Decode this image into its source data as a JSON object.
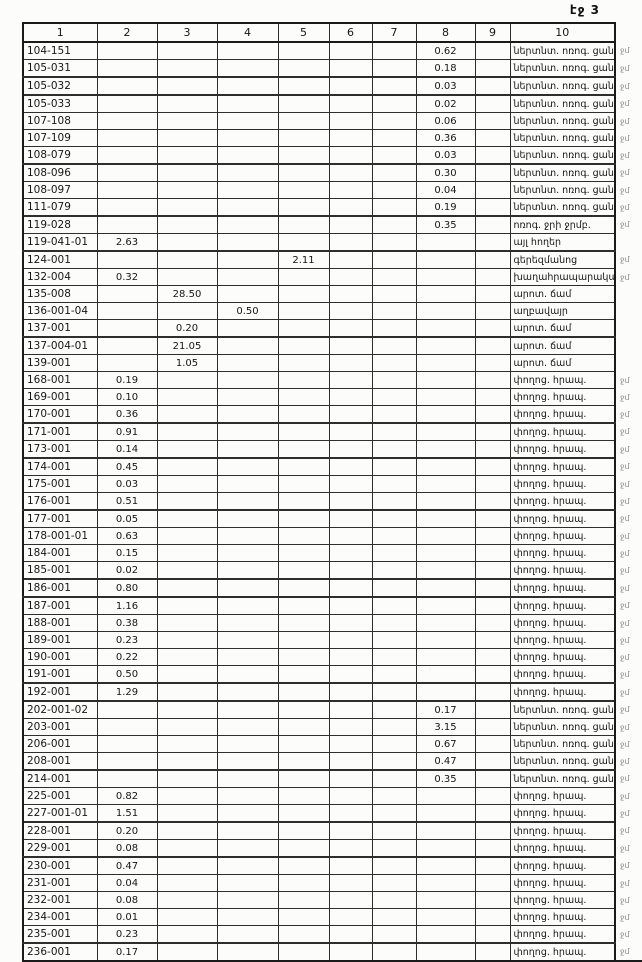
{
  "page": {
    "label": "էջ 3"
  },
  "table": {
    "headers": [
      "1",
      "2",
      "3",
      "4",
      "5",
      "6",
      "7",
      "8",
      "9",
      "10"
    ],
    "rows": [
      {
        "c1": "104-151",
        "c2": "",
        "c3": "",
        "c4": "",
        "c5": "",
        "c6": "",
        "c7": "",
        "c8": "0.62",
        "c9": "",
        "c10": "ներտնտ. ոռոգ. ցանց",
        "mark": "ջմ"
      },
      {
        "c1": "105-031",
        "c2": "",
        "c3": "",
        "c4": "",
        "c5": "",
        "c6": "",
        "c7": "",
        "c8": "0.18",
        "c9": "",
        "c10": "ներտնտ. ոռոգ. ցանց",
        "mark": "ջմ"
      },
      {
        "c1": "105-032",
        "c2": "",
        "c3": "",
        "c4": "",
        "c5": "",
        "c6": "",
        "c7": "",
        "c8": "0.03",
        "c9": "",
        "c10": "ներտնտ. ոռոգ. ցանց",
        "mark": "ջմ"
      },
      {
        "c1": "105-033",
        "c2": "",
        "c3": "",
        "c4": "",
        "c5": "",
        "c6": "",
        "c7": "",
        "c8": "0.02",
        "c9": "",
        "c10": "ներտնտ. ոռոգ. ցանց",
        "mark": "ջմ"
      },
      {
        "c1": "107-108",
        "c2": "",
        "c3": "",
        "c4": "",
        "c5": "",
        "c6": "",
        "c7": "",
        "c8": "0.06",
        "c9": "",
        "c10": "ներտնտ. ոռոգ. ցանց",
        "mark": "ջմ"
      },
      {
        "c1": "107-109",
        "c2": "",
        "c3": "",
        "c4": "",
        "c5": "",
        "c6": "",
        "c7": "",
        "c8": "0.36",
        "c9": "",
        "c10": "ներտնտ. ոռոգ. ցանց",
        "mark": "ջմ"
      },
      {
        "c1": "108-079",
        "c2": "",
        "c3": "",
        "c4": "",
        "c5": "",
        "c6": "",
        "c7": "",
        "c8": "0.03",
        "c9": "",
        "c10": "ներտնտ. ոռոգ. ցանց",
        "mark": "ջմ"
      },
      {
        "c1": "108-096",
        "c2": "",
        "c3": "",
        "c4": "",
        "c5": "",
        "c6": "",
        "c7": "",
        "c8": "0.30",
        "c9": "",
        "c10": "ներտնտ. ոռոգ. ցանց",
        "mark": "ջմ"
      },
      {
        "c1": "108-097",
        "c2": "",
        "c3": "",
        "c4": "",
        "c5": "",
        "c6": "",
        "c7": "",
        "c8": "0.04",
        "c9": "",
        "c10": "ներտնտ. ոռոգ. ցանց",
        "mark": "ջմ"
      },
      {
        "c1": "111-079",
        "c2": "",
        "c3": "",
        "c4": "",
        "c5": "",
        "c6": "",
        "c7": "",
        "c8": "0.19",
        "c9": "",
        "c10": "ներտնտ. ոռոգ. ցանց",
        "mark": "ջմ"
      },
      {
        "c1": "119-028",
        "c2": "",
        "c3": "",
        "c4": "",
        "c5": "",
        "c6": "",
        "c7": "",
        "c8": "0.35",
        "c9": "",
        "c10": "ոռոգ. ջրի ջրմբ.",
        "mark": "ջմ"
      },
      {
        "c1": "119-041-01",
        "c2": "2.63",
        "c3": "",
        "c4": "",
        "c5": "",
        "c6": "",
        "c7": "",
        "c8": "",
        "c9": "",
        "c10": "այլ հողեր",
        "mark": ""
      },
      {
        "c1": "124-001",
        "c2": "",
        "c3": "",
        "c4": "",
        "c5": "2.11",
        "c6": "",
        "c7": "",
        "c8": "",
        "c9": "",
        "c10": "գերեզմանոց",
        "mark": "ջմ"
      },
      {
        "c1": "132-004",
        "c2": "0.32",
        "c3": "",
        "c4": "",
        "c5": "",
        "c6": "",
        "c7": "",
        "c8": "",
        "c9": "",
        "c10": "խաղահրապարակատեղի",
        "mark": "ջմ"
      },
      {
        "c1": "135-008",
        "c2": "",
        "c3": "28.50",
        "c4": "",
        "c5": "",
        "c6": "",
        "c7": "",
        "c8": "",
        "c9": "",
        "c10": "արոտ. ճամ",
        "mark": ""
      },
      {
        "c1": "136-001-04",
        "c2": "",
        "c3": "",
        "c4": "0.50",
        "c5": "",
        "c6": "",
        "c7": "",
        "c8": "",
        "c9": "",
        "c10": "աղբավայր",
        "mark": ""
      },
      {
        "c1": "137-001",
        "c2": "",
        "c3": "0.20",
        "c4": "",
        "c5": "",
        "c6": "",
        "c7": "",
        "c8": "",
        "c9": "",
        "c10": "արոտ. ճամ",
        "mark": ""
      },
      {
        "c1": "137-004-01",
        "c2": "",
        "c3": "21.05",
        "c4": "",
        "c5": "",
        "c6": "",
        "c7": "",
        "c8": "",
        "c9": "",
        "c10": "արոտ. ճամ",
        "mark": ""
      },
      {
        "c1": "139-001",
        "c2": "",
        "c3": "1.05",
        "c4": "",
        "c5": "",
        "c6": "",
        "c7": "",
        "c8": "",
        "c9": "",
        "c10": "արոտ. ճամ",
        "mark": ""
      },
      {
        "c1": "168-001",
        "c2": "0.19",
        "c3": "",
        "c4": "",
        "c5": "",
        "c6": "",
        "c7": "",
        "c8": "",
        "c9": "",
        "c10": "փողոց. հրապ.",
        "mark": "ջմ"
      },
      {
        "c1": "169-001",
        "c2": "0.10",
        "c3": "",
        "c4": "",
        "c5": "",
        "c6": "",
        "c7": "",
        "c8": "",
        "c9": "",
        "c10": "փողոց. հրապ.",
        "mark": "ջմ"
      },
      {
        "c1": "170-001",
        "c2": "0.36",
        "c3": "",
        "c4": "",
        "c5": "",
        "c6": "",
        "c7": "",
        "c8": "",
        "c9": "",
        "c10": "փողոց. հրապ.",
        "mark": "ջմ"
      },
      {
        "c1": "171-001",
        "c2": "0.91",
        "c3": "",
        "c4": "",
        "c5": "",
        "c6": "",
        "c7": "",
        "c8": "",
        "c9": "",
        "c10": "փողոց. հրապ.",
        "mark": "ջմ"
      },
      {
        "c1": "173-001",
        "c2": "0.14",
        "c3": "",
        "c4": "",
        "c5": "",
        "c6": "",
        "c7": "",
        "c8": "",
        "c9": "",
        "c10": "փողոց. հրապ.",
        "mark": "ջմ"
      },
      {
        "c1": "174-001",
        "c2": "0.45",
        "c3": "",
        "c4": "",
        "c5": "",
        "c6": "",
        "c7": "",
        "c8": "",
        "c9": "",
        "c10": "փողոց. հրապ.",
        "mark": "ջմ"
      },
      {
        "c1": "175-001",
        "c2": "0.03",
        "c3": "",
        "c4": "",
        "c5": "",
        "c6": "",
        "c7": "",
        "c8": "",
        "c9": "",
        "c10": "փողոց. հրապ.",
        "mark": "ջմ"
      },
      {
        "c1": "176-001",
        "c2": "0.51",
        "c3": "",
        "c4": "",
        "c5": "",
        "c6": "",
        "c7": "",
        "c8": "",
        "c9": "",
        "c10": "փողոց. հրապ.",
        "mark": "ջմ"
      },
      {
        "c1": "177-001",
        "c2": "0.05",
        "c3": "",
        "c4": "",
        "c5": "",
        "c6": "",
        "c7": "",
        "c8": "",
        "c9": "",
        "c10": "փողոց. հրապ.",
        "mark": "ջմ"
      },
      {
        "c1": "178-001-01",
        "c2": "0.63",
        "c3": "",
        "c4": "",
        "c5": "",
        "c6": "",
        "c7": "",
        "c8": "",
        "c9": "",
        "c10": "փողոց. հրապ.",
        "mark": "ջմ"
      },
      {
        "c1": "184-001",
        "c2": "0.15",
        "c3": "",
        "c4": "",
        "c5": "",
        "c6": "",
        "c7": "",
        "c8": "",
        "c9": "",
        "c10": "փողոց. հրապ.",
        "mark": "ջմ"
      },
      {
        "c1": "185-001",
        "c2": "0.02",
        "c3": "",
        "c4": "",
        "c5": "",
        "c6": "",
        "c7": "",
        "c8": "",
        "c9": "",
        "c10": "փողոց. հրապ.",
        "mark": "ջմ"
      },
      {
        "c1": "186-001",
        "c2": "0.80",
        "c3": "",
        "c4": "",
        "c5": "",
        "c6": "",
        "c7": "",
        "c8": "",
        "c9": "",
        "c10": "փողոց. հրապ.",
        "mark": "ջմ"
      },
      {
        "c1": "187-001",
        "c2": "1.16",
        "c3": "",
        "c4": "",
        "c5": "",
        "c6": "",
        "c7": "",
        "c8": "",
        "c9": "",
        "c10": "փողոց. հրապ.",
        "mark": "ջմ"
      },
      {
        "c1": "188-001",
        "c2": "0.38",
        "c3": "",
        "c4": "",
        "c5": "",
        "c6": "",
        "c7": "",
        "c8": "",
        "c9": "",
        "c10": "փողոց. հրապ.",
        "mark": "ջմ"
      },
      {
        "c1": "189-001",
        "c2": "0.23",
        "c3": "",
        "c4": "",
        "c5": "",
        "c6": "",
        "c7": "",
        "c8": "",
        "c9": "",
        "c10": "փողոց. հրապ.",
        "mark": "ջմ"
      },
      {
        "c1": "190-001",
        "c2": "0.22",
        "c3": "",
        "c4": "",
        "c5": "",
        "c6": "",
        "c7": "",
        "c8": "",
        "c9": "",
        "c10": "փողոց. հրապ.",
        "mark": "ջմ"
      },
      {
        "c1": "191-001",
        "c2": "0.50",
        "c3": "",
        "c4": "",
        "c5": "",
        "c6": "",
        "c7": "",
        "c8": "",
        "c9": "",
        "c10": "փողոց. հրապ.",
        "mark": "ջմ"
      },
      {
        "c1": "192-001",
        "c2": "1.29",
        "c3": "",
        "c4": "",
        "c5": "",
        "c6": "",
        "c7": "",
        "c8": "",
        "c9": "",
        "c10": "փողոց. հրապ.",
        "mark": "ջմ"
      },
      {
        "c1": "202-001-02",
        "c2": "",
        "c3": "",
        "c4": "",
        "c5": "",
        "c6": "",
        "c7": "",
        "c8": "0.17",
        "c9": "",
        "c10": "ներտնտ. ոռոգ. ցանց",
        "mark": "ջմ"
      },
      {
        "c1": "203-001",
        "c2": "",
        "c3": "",
        "c4": "",
        "c5": "",
        "c6": "",
        "c7": "",
        "c8": "3.15",
        "c9": "",
        "c10": "ներտնտ. ոռոգ. ցանց",
        "mark": "ջմ"
      },
      {
        "c1": "206-001",
        "c2": "",
        "c3": "",
        "c4": "",
        "c5": "",
        "c6": "",
        "c7": "",
        "c8": "0.67",
        "c9": "",
        "c10": "ներտնտ. ոռոգ. ցանց",
        "mark": "ջմ"
      },
      {
        "c1": "208-001",
        "c2": "",
        "c3": "",
        "c4": "",
        "c5": "",
        "c6": "",
        "c7": "",
        "c8": "0.47",
        "c9": "",
        "c10": "ներտնտ. ոռոգ. ցանց",
        "mark": "ջմ"
      },
      {
        "c1": "214-001",
        "c2": "",
        "c3": "",
        "c4": "",
        "c5": "",
        "c6": "",
        "c7": "",
        "c8": "0.35",
        "c9": "",
        "c10": "ներտնտ. ոռոգ. ցանց",
        "mark": "ջմ"
      },
      {
        "c1": "225-001",
        "c2": "0.82",
        "c3": "",
        "c4": "",
        "c5": "",
        "c6": "",
        "c7": "",
        "c8": "",
        "c9": "",
        "c10": "փողոց. հրապ.",
        "mark": "ջմ"
      },
      {
        "c1": "227-001-01",
        "c2": "1.51",
        "c3": "",
        "c4": "",
        "c5": "",
        "c6": "",
        "c7": "",
        "c8": "",
        "c9": "",
        "c10": "փողոց. հրապ.",
        "mark": "ջմ"
      },
      {
        "c1": "228-001",
        "c2": "0.20",
        "c3": "",
        "c4": "",
        "c5": "",
        "c6": "",
        "c7": "",
        "c8": "",
        "c9": "",
        "c10": "փողոց. հրապ.",
        "mark": "ջմ"
      },
      {
        "c1": "229-001",
        "c2": "0.08",
        "c3": "",
        "c4": "",
        "c5": "",
        "c6": "",
        "c7": "",
        "c8": "",
        "c9": "",
        "c10": "փողոց. հրապ.",
        "mark": "ջմ"
      },
      {
        "c1": "230-001",
        "c2": "0.47",
        "c3": "",
        "c4": "",
        "c5": "",
        "c6": "",
        "c7": "",
        "c8": "",
        "c9": "",
        "c10": "փողոց. հրապ.",
        "mark": "ջմ"
      },
      {
        "c1": "231-001",
        "c2": "0.04",
        "c3": "",
        "c4": "",
        "c5": "",
        "c6": "",
        "c7": "",
        "c8": "",
        "c9": "",
        "c10": "փողոց. հրապ.",
        "mark": "ջմ"
      },
      {
        "c1": "232-001",
        "c2": "0.08",
        "c3": "",
        "c4": "",
        "c5": "",
        "c6": "",
        "c7": "",
        "c8": "",
        "c9": "",
        "c10": "փողոց. հրապ.",
        "mark": "ջմ"
      },
      {
        "c1": "234-001",
        "c2": "0.01",
        "c3": "",
        "c4": "",
        "c5": "",
        "c6": "",
        "c7": "",
        "c8": "",
        "c9": "",
        "c10": "փողոց. հրապ.",
        "mark": "ջմ"
      },
      {
        "c1": "235-001",
        "c2": "0.23",
        "c3": "",
        "c4": "",
        "c5": "",
        "c6": "",
        "c7": "",
        "c8": "",
        "c9": "",
        "c10": "փողոց. հրապ.",
        "mark": "ջմ"
      },
      {
        "c1": "236-001",
        "c2": "0.17",
        "c3": "",
        "c4": "",
        "c5": "",
        "c6": "",
        "c7": "",
        "c8": "",
        "c9": "",
        "c10": "փողոց. հրապ.",
        "mark": "ջմ"
      }
    ]
  }
}
